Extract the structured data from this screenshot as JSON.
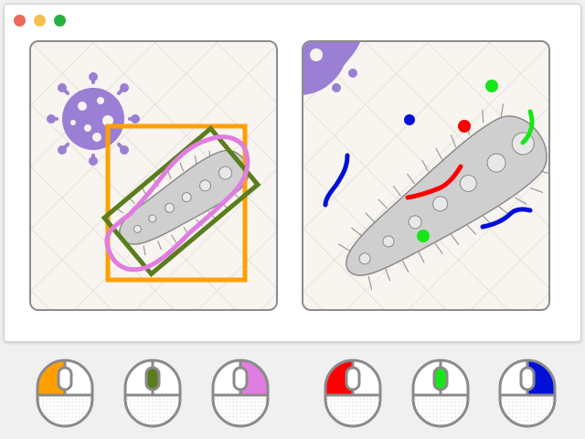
{
  "window": {
    "controls": [
      {
        "name": "close",
        "color": "#ec6a5e"
      },
      {
        "name": "minimize",
        "color": "#f4bf4f"
      },
      {
        "name": "maximize",
        "color": "#27b03f"
      }
    ]
  },
  "colors": {
    "panel_bg": "#f8f4ef",
    "panel_border": "#8c8c8c",
    "grid_line": "#dedad5",
    "bacterium_fill": "#cfcfcf",
    "bacterium_stroke": "#8a8a8a",
    "virus": "#9b7fd4",
    "orange_box": "#ffa000",
    "green_box": "#5a7d1e",
    "pink_outline": "#e07de0",
    "red": "#ff0000",
    "green": "#19e619",
    "blue": "#0010d8"
  },
  "left_panel": {
    "annotations": [
      "orange-rectangle",
      "green-rotated-rectangle",
      "pink-freehand-outline"
    ]
  },
  "right_panel": {
    "annotations": [
      "red-dot",
      "red-stroke",
      "green-dot-top",
      "green-arc",
      "green-dot-bottom",
      "blue-dot",
      "blue-squiggle-left",
      "blue-squiggle-right"
    ]
  },
  "mouse_buttons": [
    {
      "id": "left-orange",
      "side": "left",
      "color": "#ffa000"
    },
    {
      "id": "scroll-olive",
      "side": "wheel",
      "color": "#5a7d1e"
    },
    {
      "id": "right-pink",
      "side": "right",
      "color": "#e07de0"
    },
    {
      "id": "left-red",
      "side": "left",
      "color": "#ff0000"
    },
    {
      "id": "scroll-green",
      "side": "wheel",
      "color": "#19e619"
    },
    {
      "id": "right-blue",
      "side": "right",
      "color": "#0010d8"
    }
  ]
}
